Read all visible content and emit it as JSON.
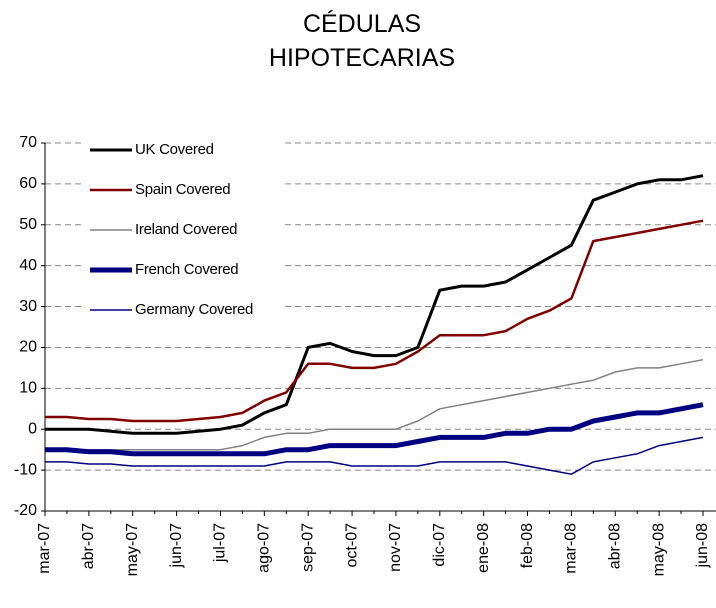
{
  "chart_data": {
    "type": "line",
    "title": [
      "CÉDULAS",
      "HIPOTECARIAS"
    ],
    "categories": [
      "mar-07",
      null,
      "abr-07",
      null,
      "may-07",
      null,
      "jun-07",
      null,
      "jul-07",
      null,
      "ago-07",
      null,
      "sep-07",
      null,
      "oct-07",
      null,
      "nov-07",
      null,
      "dic-07",
      null,
      "ene-08",
      null,
      "feb-08",
      null,
      "mar-08",
      null,
      "abr-08",
      null,
      "may-08",
      null,
      "jun-08"
    ],
    "series": [
      {
        "name": "UK Covered",
        "color": "#000000",
        "line_width": 3,
        "values": [
          0,
          0,
          0,
          -0.5,
          -1,
          -1,
          -1,
          -0.5,
          0,
          1,
          4,
          6,
          20,
          21,
          19,
          18,
          18,
          20,
          34,
          35,
          35,
          36,
          39,
          42,
          45,
          56,
          58,
          60,
          61,
          61,
          62
        ]
      },
      {
        "name": "Spain Covered",
        "color": "#800000",
        "line_width": 2.5,
        "values": [
          3,
          3,
          2.5,
          2.5,
          2,
          2,
          2,
          2.5,
          3,
          4,
          7,
          9,
          16,
          16,
          15,
          15,
          16,
          19,
          23,
          23,
          23,
          24,
          27,
          29,
          32,
          46,
          47,
          48,
          49,
          50,
          51
        ]
      },
      {
        "name": "Ireland Covered",
        "color": "#808080",
        "line_width": 1.5,
        "values": [
          -5,
          -5,
          -5,
          -5,
          -5,
          -5,
          -5,
          -5,
          -5,
          -4,
          -2,
          -1,
          -1,
          0,
          0,
          0,
          0,
          2,
          5,
          6,
          7,
          8,
          9,
          10,
          11,
          12,
          14,
          15,
          15,
          16,
          17
        ]
      },
      {
        "name": "French Covered",
        "color": "#000080",
        "line_width": 5,
        "values": [
          -5,
          -5,
          -5.5,
          -5.5,
          -6,
          -6,
          -6,
          -6,
          -6,
          -6,
          -6,
          -5,
          -5,
          -4,
          -4,
          -4,
          -4,
          -3,
          -2,
          -2,
          -2,
          -1,
          -1,
          0,
          0,
          2,
          3,
          4,
          4,
          5,
          6
        ]
      },
      {
        "name": "Germany Covered",
        "color": "#000080",
        "line_width": 1.5,
        "values": [
          -8,
          -8,
          -8.5,
          -8.5,
          -9,
          -9,
          -9,
          -9,
          -9,
          -9,
          -9,
          -8,
          -8,
          -8,
          -9,
          -9,
          -9,
          -9,
          -8,
          -8,
          -8,
          -8,
          -9,
          -10,
          -11,
          -8,
          -7,
          -6,
          -4,
          -3,
          -2
        ]
      }
    ],
    "ylim": [
      -20,
      70
    ],
    "yticks": [
      -20,
      -10,
      0,
      10,
      20,
      30,
      40,
      50,
      60,
      70
    ],
    "grid": true,
    "legend": "top-left"
  }
}
